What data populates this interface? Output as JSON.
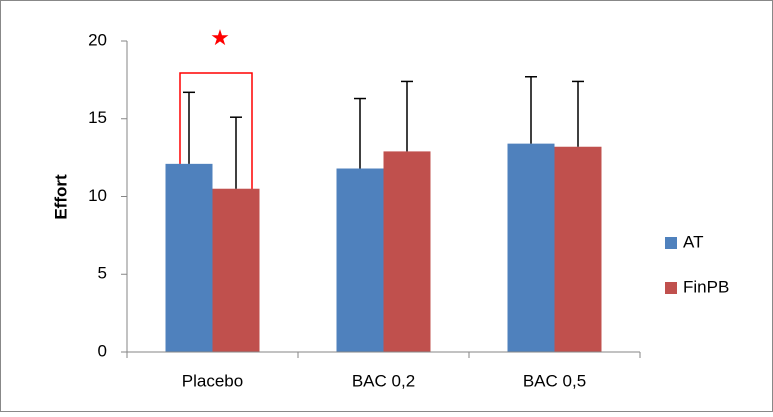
{
  "chart_data": {
    "type": "bar",
    "ylabel": "Effort",
    "categories": [
      "Placebo",
      "BAC 0,2",
      "BAC 0,5"
    ],
    "series": [
      {
        "name": "AT",
        "color": "#4f81bd",
        "values": [
          12.1,
          11.8,
          13.4
        ],
        "error": [
          4.6,
          4.5,
          4.3
        ]
      },
      {
        "name": "FinPB",
        "color": "#c0504d",
        "values": [
          10.5,
          12.9,
          13.2
        ],
        "error": [
          4.6,
          4.5,
          4.2
        ]
      }
    ],
    "ylim": [
      0,
      20
    ],
    "yticks": [
      0,
      5,
      10,
      15,
      20
    ],
    "grid": false,
    "legend": "right",
    "annotation": {
      "text": "★",
      "color": "#ff0000"
    }
  }
}
